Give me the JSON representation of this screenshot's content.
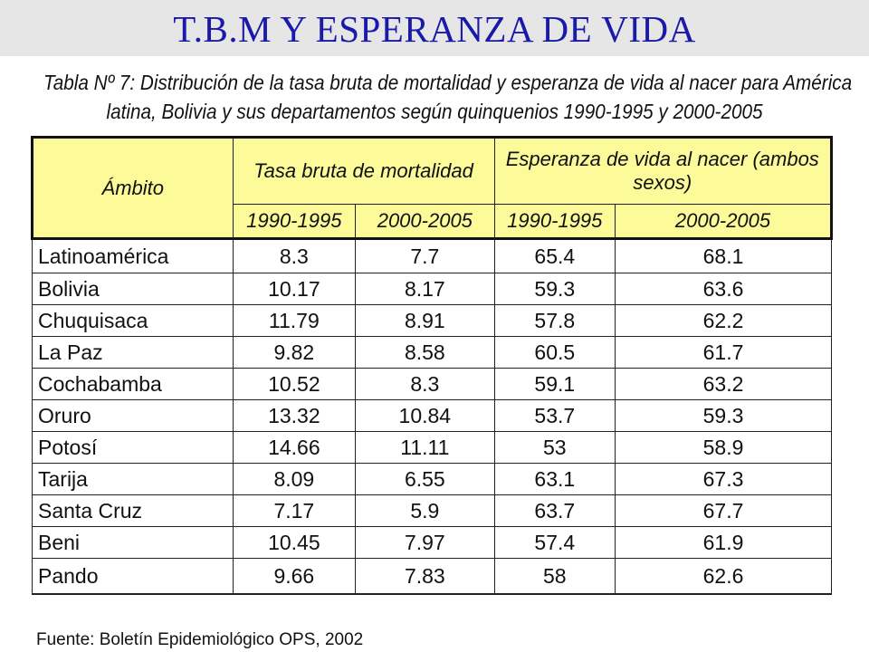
{
  "title": "T.B.M Y ESPERANZA DE  VIDA",
  "caption_line1": "Tabla Nº 7: Distribución de la tasa bruta de mortalidad y esperanza de vida al nacer para América",
  "caption_line2": "latina, Bolivia y sus departamentos según quinquenios 1990-1995 y 2000-2005",
  "table": {
    "header_ambito": "Ámbito",
    "header_group1": "Tasa bruta de mortalidad",
    "header_group2": "Esperanza de vida al nacer (ambos sexos)",
    "periods": [
      "1990-1995",
      "2000-2005",
      "1990-1995",
      "2000-2005"
    ],
    "rows": [
      {
        "ambito": "Latinoamérica",
        "tbm_1990": "8.3",
        "tbm_2000": "7.7",
        "ev_1990": "65.4",
        "ev_2000": "68.1"
      },
      {
        "ambito": "Bolivia",
        "tbm_1990": "10.17",
        "tbm_2000": "8.17",
        "ev_1990": "59.3",
        "ev_2000": "63.6"
      },
      {
        "ambito": "Chuquisaca",
        "tbm_1990": "11.79",
        "tbm_2000": "8.91",
        "ev_1990": "57.8",
        "ev_2000": "62.2"
      },
      {
        "ambito": "La Paz",
        "tbm_1990": "9.82",
        "tbm_2000": "8.58",
        "ev_1990": "60.5",
        "ev_2000": "61.7"
      },
      {
        "ambito": "Cochabamba",
        "tbm_1990": "10.52",
        "tbm_2000": "8.3",
        "ev_1990": "59.1",
        "ev_2000": "63.2"
      },
      {
        "ambito": "Oruro",
        "tbm_1990": "13.32",
        "tbm_2000": "10.84",
        "ev_1990": "53.7",
        "ev_2000": "59.3"
      },
      {
        "ambito": "Potosí",
        "tbm_1990": "14.66",
        "tbm_2000": "11.11",
        "ev_1990": "53",
        "ev_2000": "58.9"
      },
      {
        "ambito": "Tarija",
        "tbm_1990": "8.09",
        "tbm_2000": "6.55",
        "ev_1990": "63.1",
        "ev_2000": "67.3"
      },
      {
        "ambito": "Santa Cruz",
        "tbm_1990": "7.17",
        "tbm_2000": "5.9",
        "ev_1990": "63.7",
        "ev_2000": "67.7"
      },
      {
        "ambito": "Beni",
        "tbm_1990": "10.45",
        "tbm_2000": "7.97",
        "ev_1990": "57.4",
        "ev_2000": "61.9"
      },
      {
        "ambito": "Pando",
        "tbm_1990": "9.66",
        "tbm_2000": "7.83",
        "ev_1990": "58",
        "ev_2000": "62.6"
      }
    ]
  },
  "source": "Fuente: Boletín Epidemiológico OPS, 2002",
  "colors": {
    "title": "#1a1aaa",
    "header_bg": "#fdfb99",
    "title_band": "#e6e6e6"
  }
}
